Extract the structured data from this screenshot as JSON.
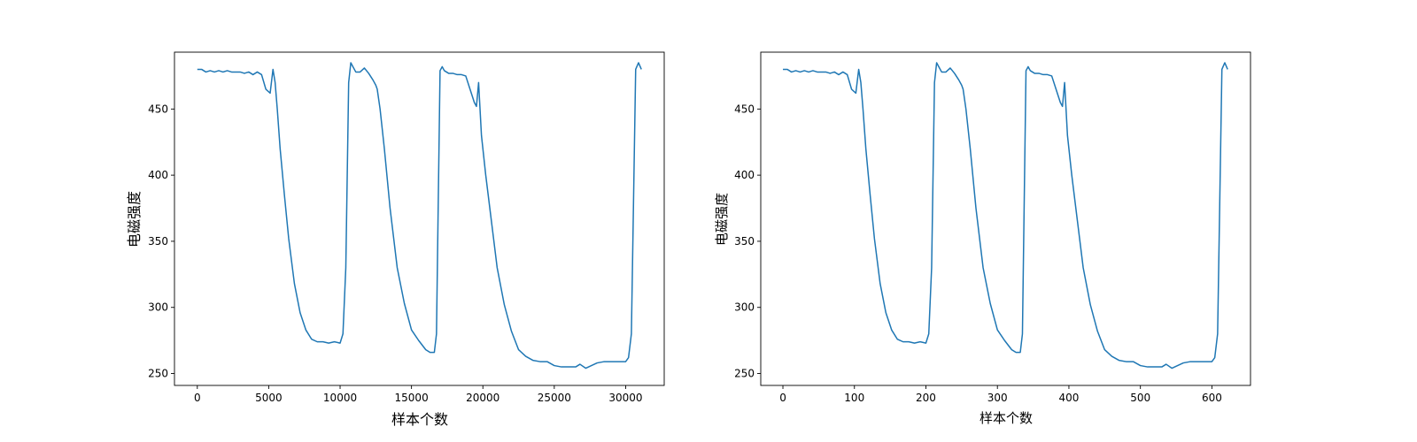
{
  "chart_data": [
    {
      "type": "line",
      "xlabel": "样本个数",
      "ylabel": "电磁强度",
      "xlim": [
        -1600,
        32700
      ],
      "ylim": [
        241,
        493
      ],
      "xticks": [
        0,
        5000,
        10000,
        15000,
        20000,
        25000,
        30000
      ],
      "yticks": [
        250,
        300,
        350,
        400,
        450
      ],
      "grid": false,
      "color": "#1f77b4",
      "series": [
        {
          "x": [
            0,
            300,
            600,
            900,
            1200,
            1500,
            1800,
            2100,
            2400,
            2700,
            3000,
            3300,
            3600,
            3900,
            4200,
            4500,
            4800,
            5100,
            5300,
            5450,
            5600,
            5800,
            6100,
            6400,
            6800,
            7200,
            7600,
            8000,
            8400,
            8800,
            9200,
            9600,
            10000,
            10200,
            10400,
            10600,
            10750,
            10900,
            11100,
            11400,
            11700,
            12000,
            12300,
            12500,
            12600,
            12800,
            13100,
            13500,
            14000,
            14500,
            15000,
            15500,
            16000,
            16300,
            16600,
            16750,
            16900,
            17000,
            17150,
            17300,
            17600,
            17900,
            18200,
            18500,
            18800,
            19100,
            19400,
            19550,
            19700,
            19900,
            20200,
            20600,
            21000,
            21500,
            22000,
            22500,
            23000,
            23500,
            24000,
            24500,
            25000,
            25500,
            26000,
            26500,
            26800,
            27200,
            27600,
            28000,
            28500,
            29000,
            29500,
            30000,
            30200,
            30400,
            30550,
            30700,
            30900,
            31100
          ],
          "y": [
            480,
            480,
            478,
            479,
            478,
            479,
            478,
            479,
            478,
            478,
            478,
            477,
            478,
            476,
            478,
            476,
            465,
            462,
            480,
            470,
            450,
            420,
            385,
            352,
            318,
            296,
            283,
            276,
            274,
            274,
            273,
            274,
            273,
            280,
            330,
            470,
            485,
            482,
            478,
            478,
            481,
            477,
            472,
            468,
            465,
            450,
            420,
            375,
            330,
            303,
            283,
            275,
            268,
            266,
            266,
            280,
            400,
            479,
            482,
            479,
            477,
            477,
            476,
            476,
            475,
            465,
            455,
            452,
            470,
            430,
            400,
            365,
            330,
            302,
            282,
            268,
            263,
            260,
            259,
            259,
            256,
            255,
            255,
            255,
            257,
            254,
            256,
            258,
            259,
            259,
            259,
            259,
            262,
            280,
            380,
            480,
            485,
            480
          ]
        }
      ]
    },
    {
      "type": "line",
      "xlabel": "样本个数",
      "ylabel": "电磁强度",
      "xlim": [
        -31,
        654
      ],
      "ylim": [
        241,
        493
      ],
      "xticks": [
        0,
        100,
        200,
        300,
        400,
        500,
        600
      ],
      "yticks": [
        250,
        300,
        350,
        400,
        450
      ],
      "grid": false,
      "color": "#1f77b4",
      "series": [
        {
          "x": [
            0,
            6,
            12,
            18,
            24,
            30,
            36,
            42,
            48,
            54,
            60,
            66,
            72,
            78,
            84,
            90,
            96,
            102,
            106,
            109,
            112,
            116,
            122,
            128,
            136,
            144,
            152,
            160,
            168,
            176,
            184,
            192,
            200,
            204,
            208,
            212,
            215,
            218,
            222,
            228,
            234,
            240,
            246,
            250,
            252,
            256,
            262,
            270,
            280,
            290,
            300,
            310,
            320,
            326,
            332,
            335,
            338,
            340,
            343,
            346,
            352,
            358,
            364,
            370,
            376,
            382,
            388,
            391,
            394,
            398,
            404,
            412,
            420,
            430,
            440,
            450,
            460,
            470,
            480,
            490,
            500,
            510,
            520,
            530,
            536,
            544,
            552,
            560,
            570,
            580,
            590,
            600,
            604,
            608,
            611,
            614,
            618,
            622
          ],
          "y": [
            480,
            480,
            478,
            479,
            478,
            479,
            478,
            479,
            478,
            478,
            478,
            477,
            478,
            476,
            478,
            476,
            465,
            462,
            480,
            470,
            450,
            420,
            385,
            352,
            318,
            296,
            283,
            276,
            274,
            274,
            273,
            274,
            273,
            280,
            330,
            470,
            485,
            482,
            478,
            478,
            481,
            477,
            472,
            468,
            465,
            450,
            420,
            375,
            330,
            303,
            283,
            275,
            268,
            266,
            266,
            280,
            400,
            479,
            482,
            479,
            477,
            477,
            476,
            476,
            475,
            465,
            455,
            452,
            470,
            430,
            400,
            365,
            330,
            302,
            282,
            268,
            263,
            260,
            259,
            259,
            256,
            255,
            255,
            255,
            257,
            254,
            256,
            258,
            259,
            259,
            259,
            259,
            262,
            280,
            380,
            480,
            485,
            480
          ]
        }
      ]
    }
  ]
}
